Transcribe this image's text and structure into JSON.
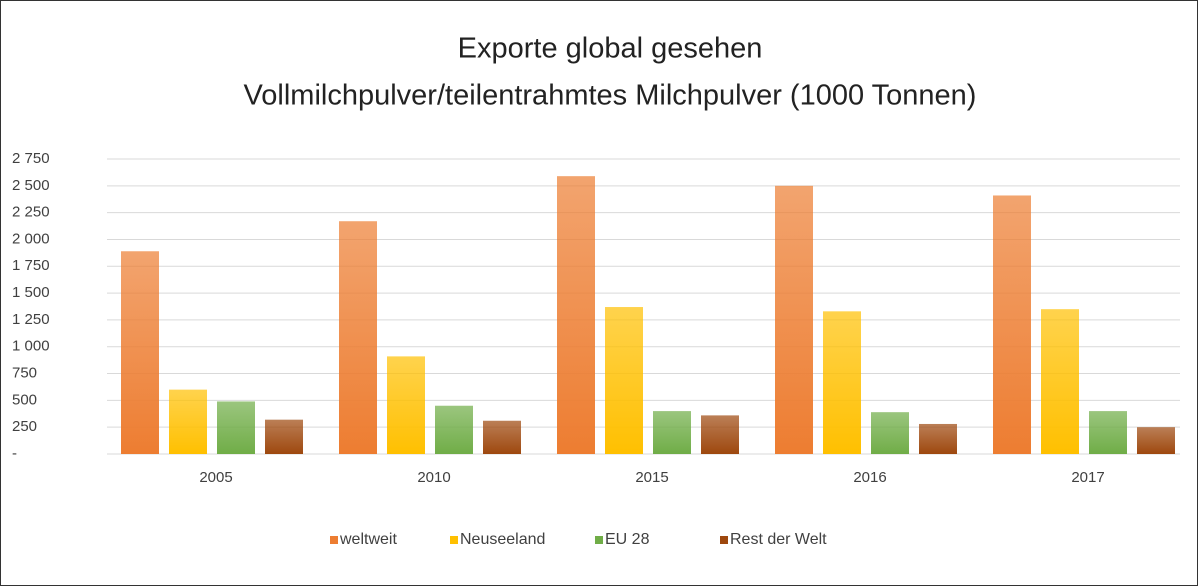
{
  "chart_data": {
    "type": "bar",
    "title": "Exporte global gesehen",
    "subtitle": "Vollmilchpulver/teilentrahmtes Milchpulver (1000 Tonnen)",
    "categories": [
      "2005",
      "2010",
      "2015",
      "2016",
      "2017"
    ],
    "series": [
      {
        "name": "weltweit",
        "color": "#ed7d31",
        "values": [
          1890,
          2170,
          2590,
          2500,
          2410
        ]
      },
      {
        "name": "Neuseeland",
        "color": "#ffc000",
        "values": [
          600,
          910,
          1370,
          1330,
          1350
        ]
      },
      {
        "name": "EU 28",
        "color": "#70ad47",
        "values": [
          490,
          450,
          400,
          390,
          400
        ]
      },
      {
        "name": "Rest der Welt",
        "color": "#9e480e",
        "values": [
          320,
          310,
          360,
          280,
          250
        ]
      }
    ],
    "ylim": [
      0,
      2750
    ],
    "yticks": [
      {
        "value": 0,
        "label": "-"
      },
      250,
      500,
      750,
      {
        "value": 1000,
        "label": "1 000"
      },
      {
        "value": 1250,
        "label": "1 250"
      },
      {
        "value": 1500,
        "label": "1 500"
      },
      {
        "value": 1750,
        "label": "1 750"
      },
      {
        "value": 2000,
        "label": "2 000"
      },
      {
        "value": 2250,
        "label": "2 250"
      },
      {
        "value": 2500,
        "label": "2 500"
      },
      {
        "value": 2750,
        "label": "2 750"
      }
    ],
    "grid": true,
    "legend": "bottom"
  }
}
